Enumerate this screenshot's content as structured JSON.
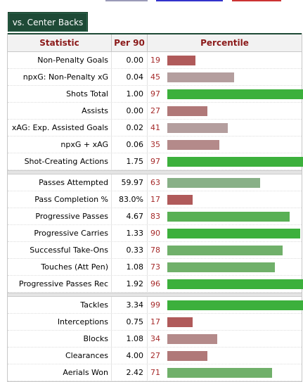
{
  "colors": {
    "tab_bg": "#1e4a36",
    "header_text": "#8b1a1a",
    "pct_text": "#a52a2a"
  },
  "tab_label": "vs. Center Backs",
  "headers": {
    "statistic": "Statistic",
    "per90": "Per 90",
    "percentile": "Percentile"
  },
  "groups": [
    [
      {
        "stat": "Non-Penalty Goals",
        "per90": "0.00",
        "pct": 19
      },
      {
        "stat": "npxG: Non-Penalty xG",
        "per90": "0.04",
        "pct": 45
      },
      {
        "stat": "Shots Total",
        "per90": "1.00",
        "pct": 97
      },
      {
        "stat": "Assists",
        "per90": "0.00",
        "pct": 27
      },
      {
        "stat": "xAG: Exp. Assisted Goals",
        "per90": "0.02",
        "pct": 41
      },
      {
        "stat": "npxG + xAG",
        "per90": "0.06",
        "pct": 35
      },
      {
        "stat": "Shot-Creating Actions",
        "per90": "1.75",
        "pct": 97
      }
    ],
    [
      {
        "stat": "Passes Attempted",
        "per90": "59.97",
        "pct": 63
      },
      {
        "stat": "Pass Completion %",
        "per90": "83.0%",
        "pct": 17
      },
      {
        "stat": "Progressive Passes",
        "per90": "4.67",
        "pct": 83
      },
      {
        "stat": "Progressive Carries",
        "per90": "1.33",
        "pct": 90
      },
      {
        "stat": "Successful Take-Ons",
        "per90": "0.33",
        "pct": 78
      },
      {
        "stat": "Touches (Att Pen)",
        "per90": "1.08",
        "pct": 73
      },
      {
        "stat": "Progressive Passes Rec",
        "per90": "1.92",
        "pct": 96
      }
    ],
    [
      {
        "stat": "Tackles",
        "per90": "3.34",
        "pct": 99
      },
      {
        "stat": "Interceptions",
        "per90": "0.75",
        "pct": 17
      },
      {
        "stat": "Blocks",
        "per90": "1.08",
        "pct": 34
      },
      {
        "stat": "Clearances",
        "per90": "4.00",
        "pct": 27
      },
      {
        "stat": "Aerials Won",
        "per90": "2.42",
        "pct": 71
      }
    ]
  ]
}
